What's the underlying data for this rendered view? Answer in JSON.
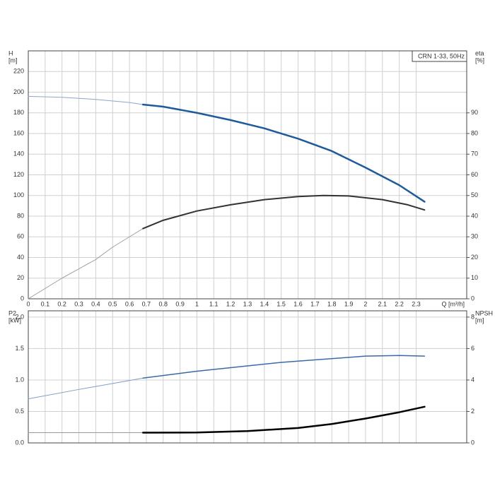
{
  "chart_data": [
    {
      "type": "line",
      "annotation": "CRN 1-33, 50Hz",
      "x_label": "Q [m³/h]",
      "y_label": [
        "H",
        "[m]"
      ],
      "y2_label": [
        "eta",
        "[%]"
      ],
      "xlim": [
        0,
        2.6
      ],
      "xticks": [
        0,
        0.1,
        0.2,
        0.3,
        0.4,
        0.5,
        0.6,
        0.7,
        0.8,
        0.9,
        1.0,
        1.1,
        1.2,
        1.3,
        1.4,
        1.5,
        1.6,
        1.7,
        1.8,
        1.9,
        2.0,
        2.1,
        2.2,
        2.3
      ],
      "show_xtick_labels": true,
      "ylim": [
        0,
        240
      ],
      "yticks": [
        0,
        20,
        40,
        60,
        80,
        100,
        120,
        140,
        160,
        180,
        200,
        220
      ],
      "y2lim": [
        0,
        120
      ],
      "y2ticks": [
        0,
        10,
        20,
        30,
        40,
        50,
        60,
        70,
        80,
        90
      ],
      "grid": true,
      "series": [
        {
          "color": "#8ca7c9",
          "linewidth": 1,
          "x": [
            0,
            0.2,
            0.4,
            0.6,
            0.68
          ],
          "values": [
            196,
            195,
            193,
            190,
            188
          ]
        },
        {
          "color": "#1f5a9a",
          "linewidth": 2.5,
          "x": [
            0.68,
            0.8,
            1.0,
            1.2,
            1.4,
            1.6,
            1.8,
            2.0,
            2.2,
            2.35
          ],
          "values": [
            188,
            186,
            180,
            173,
            165,
            155,
            143,
            127,
            110,
            94
          ]
        },
        {
          "color": "#a0a0a0",
          "linewidth": 1,
          "axis": "y2",
          "x": [
            0,
            0.1,
            0.2,
            0.3,
            0.4,
            0.5,
            0.6,
            0.68
          ],
          "values": [
            0,
            5,
            10,
            14.5,
            19,
            25,
            30,
            34
          ]
        },
        {
          "color": "#333333",
          "linewidth": 2,
          "axis": "y2",
          "x": [
            0.68,
            0.8,
            1.0,
            1.2,
            1.4,
            1.6,
            1.75,
            1.9,
            2.1,
            2.25,
            2.35
          ],
          "values": [
            34,
            38,
            42.5,
            45.5,
            48,
            49.5,
            50,
            49.8,
            48,
            45.5,
            43
          ]
        }
      ]
    },
    {
      "type": "line",
      "y_label": [
        "P2",
        "[kW]"
      ],
      "y2_label": [
        "NPSH",
        "[m]"
      ],
      "xlim": [
        0,
        2.6
      ],
      "xticks": [
        0,
        0.1,
        0.2,
        0.3,
        0.4,
        0.5,
        0.6,
        0.7,
        0.8,
        0.9,
        1.0,
        1.1,
        1.2,
        1.3,
        1.4,
        1.5,
        1.6,
        1.7,
        1.8,
        1.9,
        2.0,
        2.1,
        2.2,
        2.3
      ],
      "show_xtick_labels": false,
      "ylim": [
        0,
        2.1
      ],
      "yticks": [
        {
          "value": 0,
          "label": "0.0"
        },
        0.5,
        {
          "value": 1,
          "label": "1.0"
        },
        1.5,
        {
          "value": 2,
          "label": "2.0"
        }
      ],
      "y2lim": [
        0,
        8.4
      ],
      "y2ticks": [
        0,
        2,
        4,
        6,
        8
      ],
      "grid": true,
      "series": [
        {
          "color": "#7f9dc4",
          "linewidth": 1,
          "x": [
            0,
            0.3,
            0.68
          ],
          "values": [
            0.7,
            0.85,
            1.03
          ]
        },
        {
          "color": "#3a6aa5",
          "linewidth": 1.5,
          "x": [
            0.68,
            1.0,
            1.5,
            2.0,
            2.2,
            2.35
          ],
          "values": [
            1.03,
            1.14,
            1.28,
            1.38,
            1.39,
            1.38
          ]
        },
        {
          "color": "#999999",
          "linewidth": 1,
          "axis": "y2",
          "x": [
            0,
            0.68
          ],
          "values": [
            0.65,
            0.65
          ]
        },
        {
          "color": "#000000",
          "linewidth": 2.5,
          "axis": "y2",
          "x": [
            0.68,
            1.0,
            1.3,
            1.6,
            1.8,
            2.0,
            2.2,
            2.35
          ],
          "values": [
            0.65,
            0.66,
            0.75,
            0.95,
            1.2,
            1.55,
            1.95,
            2.3
          ]
        }
      ]
    }
  ]
}
